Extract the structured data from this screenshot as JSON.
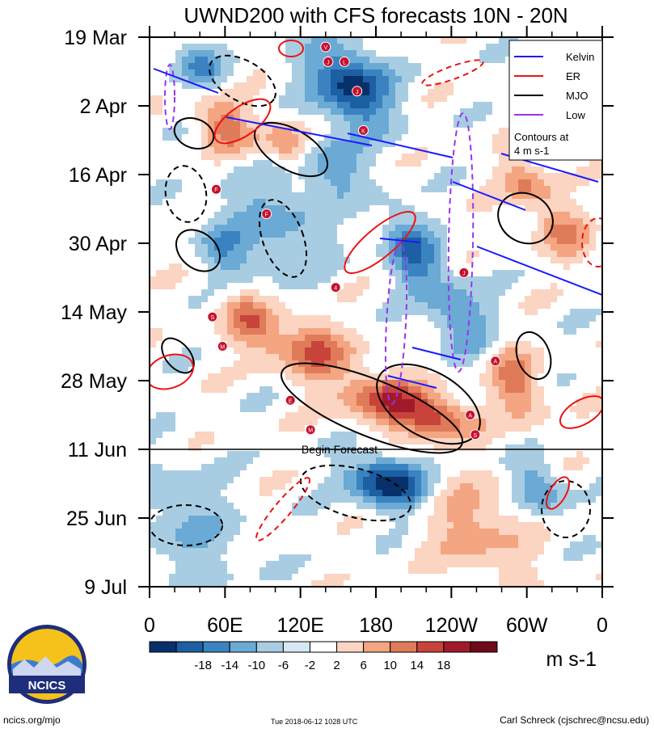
{
  "chart_data": {
    "type": "heatmap",
    "title": "UWND200 with CFS forecasts 10N - 20N",
    "x_ticks": [
      "0",
      "60E",
      "120E",
      "180",
      "120W",
      "60W",
      "0"
    ],
    "x_range": [
      0,
      360
    ],
    "y_ticks": [
      "19 Mar",
      "2 Apr",
      "16 Apr",
      "30 Apr",
      "14 May",
      "28 May",
      "11 Jun",
      "25 Jun",
      "9 Jul"
    ],
    "y_range_days": [
      0,
      112
    ],
    "forecast_line_label": "Begin Forecast",
    "forecast_start_day": 84,
    "colorbar": {
      "unit": "m s-1",
      "tick_labels": [
        "-18",
        "-14",
        "-10",
        "-6",
        "-2",
        "2",
        "6",
        "10",
        "14",
        "18"
      ],
      "colors": [
        "#08306b",
        "#1c5fa3",
        "#3a83c0",
        "#6aaad4",
        "#a8cde3",
        "#d6e8f2",
        "#ffffff",
        "#fbd4c2",
        "#f4a582",
        "#e07b5a",
        "#c8433a",
        "#a11a2b",
        "#6e0a1a"
      ]
    },
    "legend": {
      "items": [
        {
          "name": "Kelvin",
          "color": "#1a1aff"
        },
        {
          "name": "ER",
          "color": "#ee1111"
        },
        {
          "name": "MJO",
          "color": "#000000"
        },
        {
          "name": "Low",
          "color": "#9933ee"
        }
      ],
      "note_line1": "Contours at",
      "note_line2": "4 m s-1"
    },
    "cyclones": [
      {
        "label": "V",
        "lon": 140,
        "day": 2
      },
      {
        "label": "J",
        "lon": 142,
        "day": 5
      },
      {
        "label": "L",
        "lon": 155,
        "day": 5
      },
      {
        "label": "J",
        "lon": 165,
        "day": 11
      },
      {
        "label": "K",
        "lon": 170,
        "day": 19
      },
      {
        "label": "F",
        "lon": 53,
        "day": 31
      },
      {
        "label": "F",
        "lon": 93,
        "day": 36
      },
      {
        "label": "J",
        "lon": 250,
        "day": 48
      },
      {
        "label": "4",
        "lon": 148,
        "day": 51
      },
      {
        "label": "S",
        "lon": 50,
        "day": 57
      },
      {
        "label": "M",
        "lon": 58,
        "day": 63
      },
      {
        "label": "A",
        "lon": 275,
        "day": 66
      },
      {
        "label": "E",
        "lon": 112,
        "day": 74
      },
      {
        "label": "M",
        "lon": 128,
        "day": 80
      },
      {
        "label": "A",
        "lon": 255,
        "day": 77
      },
      {
        "label": "S",
        "lon": 259,
        "day": 81
      }
    ]
  },
  "footer": {
    "left": "ncics.org/mjo",
    "center": "Tue 2018-06-12 1028 UTC",
    "right": "Carl Schreck (cjschrec@ncsu.edu)"
  },
  "logo": {
    "text": "NCICS"
  }
}
